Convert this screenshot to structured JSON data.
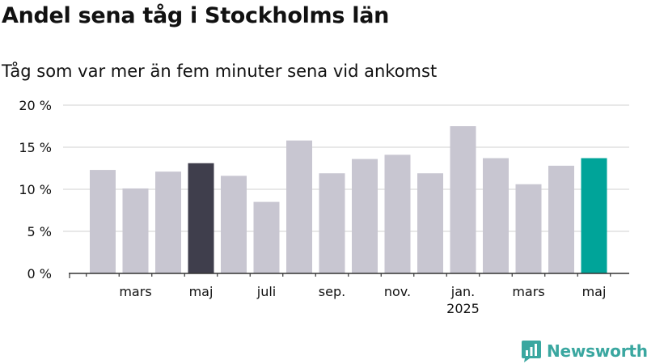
{
  "header": {
    "title": "Andel sena tåg i Stockholms län",
    "subtitle": "Tåg som var mer än fem minuter sena vid ankomst"
  },
  "brand": {
    "name": "Newsworthy"
  },
  "colors": {
    "default_bar": "#c8c6d1",
    "highlight_dark": "#3f3e4c",
    "highlight_teal": "#00a499",
    "grid": "#d9d9d9",
    "axis": "#333333",
    "text": "#111111",
    "brand": "#3aa7a0"
  },
  "chart_data": {
    "type": "bar",
    "categories": [
      "2024-02",
      "2024-03",
      "2024-04",
      "2024-05",
      "2024-06",
      "2024-07",
      "2024-08",
      "2024-09",
      "2024-10",
      "2024-11",
      "2024-12",
      "2025-01",
      "2025-02",
      "2025-03",
      "2025-04",
      "2025-05"
    ],
    "values": [
      12.3,
      10.1,
      12.1,
      13.1,
      11.6,
      8.5,
      15.8,
      11.9,
      13.6,
      14.1,
      11.9,
      17.5,
      13.7,
      10.6,
      12.8,
      13.7
    ],
    "highlight": {
      "3": "highlight_dark",
      "15": "highlight_teal"
    },
    "ylim": [
      0,
      20
    ],
    "y_ticks": [
      {
        "value": 0,
        "label": "0 %"
      },
      {
        "value": 5,
        "label": "5 %"
      },
      {
        "value": 10,
        "label": "10 %"
      },
      {
        "value": 15,
        "label": "15 %"
      },
      {
        "value": 20,
        "label": "20 %"
      }
    ],
    "x_tick_labels": [
      {
        "index": 1,
        "label": "mars",
        "sublabel": ""
      },
      {
        "index": 3,
        "label": "maj",
        "sublabel": ""
      },
      {
        "index": 5,
        "label": "juli",
        "sublabel": ""
      },
      {
        "index": 7,
        "label": "sep.",
        "sublabel": ""
      },
      {
        "index": 9,
        "label": "nov.",
        "sublabel": ""
      },
      {
        "index": 11,
        "label": "jan.",
        "sublabel": "2025"
      },
      {
        "index": 13,
        "label": "mars",
        "sublabel": ""
      },
      {
        "index": 15,
        "label": "maj",
        "sublabel": ""
      }
    ],
    "xlabel": "",
    "ylabel": "",
    "grid": true
  }
}
